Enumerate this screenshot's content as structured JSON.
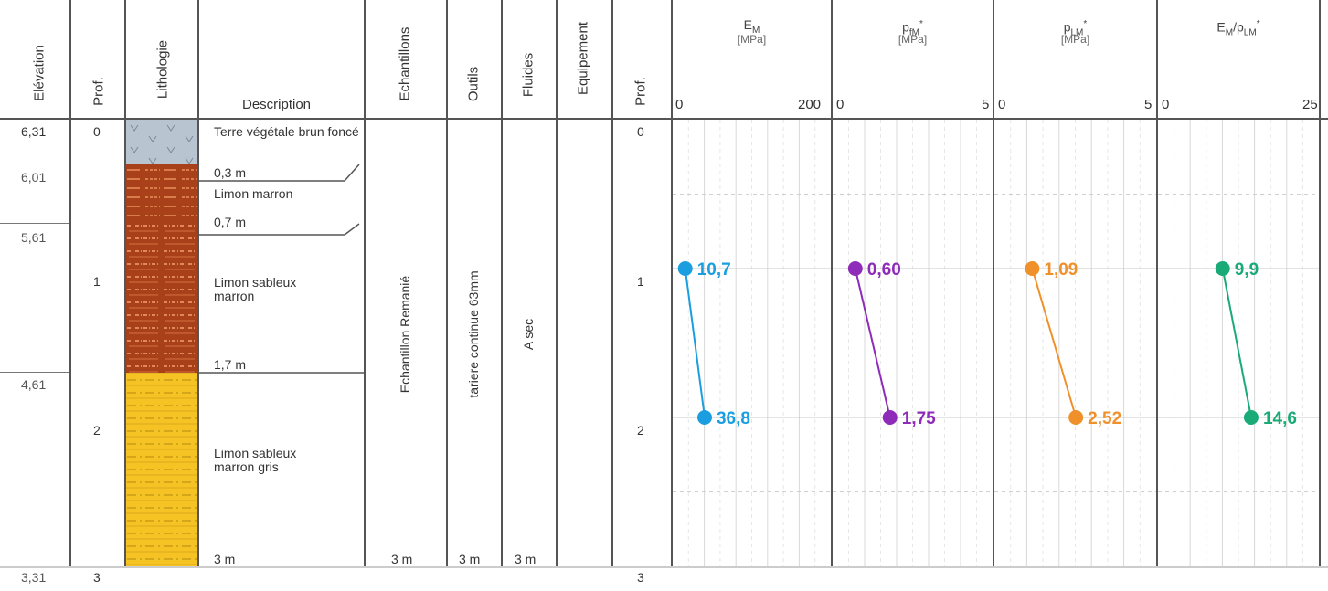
{
  "headers": {
    "elevation": "Elévation",
    "prof": "Prof.",
    "lithologie": "Lithologie",
    "description": "Description",
    "echantillons": "Echantillons",
    "outils": "Outils",
    "fluides": "Fluides",
    "equipement": "Equipement",
    "prof2": "Prof."
  },
  "elevations": [
    "6,31",
    "6,01",
    "5,61",
    "4,61",
    "3,31"
  ],
  "depth_ticks": [
    "0",
    "1",
    "2",
    "3"
  ],
  "layers": [
    {
      "name": "Terre végétale brun foncé",
      "bottom_label": "0,3 m",
      "top": 0,
      "bottom": 0.3,
      "color": "#b8c4d0"
    },
    {
      "name": "Limon marron",
      "bottom_label": "0,7 m",
      "top": 0.3,
      "bottom": 0.7,
      "color": "#a8401a"
    },
    {
      "name": "Limon sableux marron",
      "bottom_label": "1,7 m",
      "top": 0.7,
      "bottom": 1.7,
      "color": "#a8401a"
    },
    {
      "name": "Limon sableux marron gris",
      "bottom_label": "3 m",
      "top": 1.7,
      "bottom": 3.0,
      "color": "#f5c324"
    }
  ],
  "samples": {
    "text": "Echantillon Remanié",
    "bottom": "3 m"
  },
  "tools": {
    "text": "tariere continue 63mm",
    "bottom": "3 m"
  },
  "fluids": {
    "text": "A sec",
    "bottom": "3 m"
  },
  "chart_data": [
    {
      "type": "line",
      "title_main": "E",
      "title_sub": "M",
      "title_sup": "",
      "unit": "[MPa]",
      "xlim": [
        0,
        200
      ],
      "tick_labels": [
        "0",
        "200"
      ],
      "color": "#1a9ee0",
      "points": [
        {
          "depth": 1.0,
          "value": 10.7,
          "label": "10,7"
        },
        {
          "depth": 2.0,
          "value": 36.8,
          "label": "36,8"
        }
      ]
    },
    {
      "type": "line",
      "title_main": "p",
      "title_sub": "fM",
      "title_sup": "*",
      "unit": "[MPa]",
      "xlim": [
        0,
        5
      ],
      "tick_labels": [
        "0",
        "5"
      ],
      "color": "#8e2bb8",
      "points": [
        {
          "depth": 1.0,
          "value": 0.6,
          "label": "0,60"
        },
        {
          "depth": 2.0,
          "value": 1.75,
          "label": "1,75"
        }
      ]
    },
    {
      "type": "line",
      "title_main": "p",
      "title_sub": "LM",
      "title_sup": "*",
      "unit": "[MPa]",
      "xlim": [
        0,
        5
      ],
      "tick_labels": [
        "0",
        "5"
      ],
      "color": "#f0902a",
      "points": [
        {
          "depth": 1.0,
          "value": 1.09,
          "label": "1,09"
        },
        {
          "depth": 2.0,
          "value": 2.52,
          "label": "2,52"
        }
      ]
    },
    {
      "type": "line",
      "title_main": "E",
      "title_sub": "M",
      "title_mid": "/p",
      "title_sub2": "LM",
      "title_sup": "*",
      "unit": "",
      "xlim": [
        0,
        25
      ],
      "tick_labels": [
        "0",
        "25"
      ],
      "color": "#1aaa78",
      "points": [
        {
          "depth": 1.0,
          "value": 9.9,
          "label": "9,9"
        },
        {
          "depth": 2.0,
          "value": 14.6,
          "label": "14,6"
        }
      ]
    }
  ]
}
